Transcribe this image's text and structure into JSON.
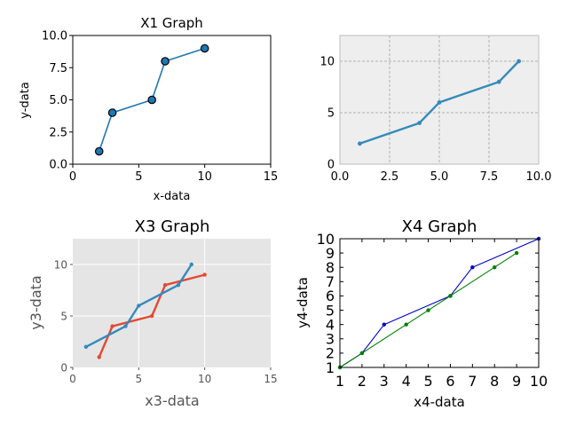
{
  "chart_data": [
    {
      "type": "line",
      "title": "X1 Graph",
      "xlabel": "x-data",
      "ylabel": "y-data",
      "xlim": [
        0,
        15
      ],
      "ylim": [
        0,
        10
      ],
      "xticks": [
        "0",
        "5",
        "10",
        "15"
      ],
      "yticks": [
        "0.0",
        "2.5",
        "5.0",
        "7.5",
        "10.0"
      ],
      "grid": false,
      "background": "#ffffff",
      "series": [
        {
          "x": [
            2,
            3,
            6,
            7,
            10
          ],
          "y": [
            1,
            4,
            5,
            8,
            9
          ],
          "color": "#1f77b4",
          "marker": "circle-large",
          "marker_fill": "#1f77b4"
        }
      ]
    },
    {
      "type": "line",
      "title": "",
      "xlabel": "",
      "ylabel": "",
      "xlim": [
        0,
        10
      ],
      "ylim": [
        0,
        12.5
      ],
      "xticks": [
        "0.0",
        "2.5",
        "5.0",
        "7.5",
        "10.0"
      ],
      "yticks": [
        "0",
        "5",
        "10"
      ],
      "grid": true,
      "background": "#eeeeee",
      "series": [
        {
          "x": [
            1,
            4,
            5,
            8,
            9
          ],
          "y": [
            2,
            4,
            6,
            8,
            10
          ],
          "color": "#348abd",
          "marker": "dot"
        }
      ]
    },
    {
      "type": "line",
      "title": "X3 Graph",
      "xlabel": "x3-data",
      "ylabel": "y3-data",
      "xlim": [
        0,
        15
      ],
      "ylim": [
        0,
        12.5
      ],
      "xticks": [
        "0",
        "5",
        "10",
        "15"
      ],
      "yticks": [
        "0",
        "5",
        "10"
      ],
      "grid": true,
      "background": "#e5e5e5",
      "series": [
        {
          "x": [
            2,
            3,
            6,
            7,
            10
          ],
          "y": [
            1,
            4,
            5,
            8,
            9
          ],
          "color": "#e24a33",
          "marker": "dot"
        },
        {
          "x": [
            1,
            4,
            5,
            8,
            9
          ],
          "y": [
            2,
            4,
            6,
            8,
            10
          ],
          "color": "#348abd",
          "marker": "dot"
        }
      ]
    },
    {
      "type": "line",
      "title": "X4 Graph",
      "xlabel": "x4-data",
      "ylabel": "y4-data",
      "xlim": [
        1,
        10
      ],
      "ylim": [
        1,
        10
      ],
      "xticks": [
        "1",
        "2",
        "3",
        "4",
        "5",
        "6",
        "7",
        "8",
        "9",
        "10"
      ],
      "yticks": [
        "1",
        "2",
        "3",
        "4",
        "5",
        "6",
        "7",
        "8",
        "9",
        "10"
      ],
      "grid": false,
      "background": "#ffffff",
      "series": [
        {
          "x": [
            1,
            2,
            3,
            6,
            7,
            10
          ],
          "y": [
            1,
            2,
            4,
            6,
            8,
            10
          ],
          "color": "#0000cc",
          "marker": "dot"
        },
        {
          "x": [
            1,
            2,
            4,
            5,
            6,
            8,
            9
          ],
          "y": [
            1,
            2,
            4,
            5,
            6,
            8,
            9
          ],
          "color": "#008000",
          "marker": "dot"
        }
      ]
    }
  ]
}
